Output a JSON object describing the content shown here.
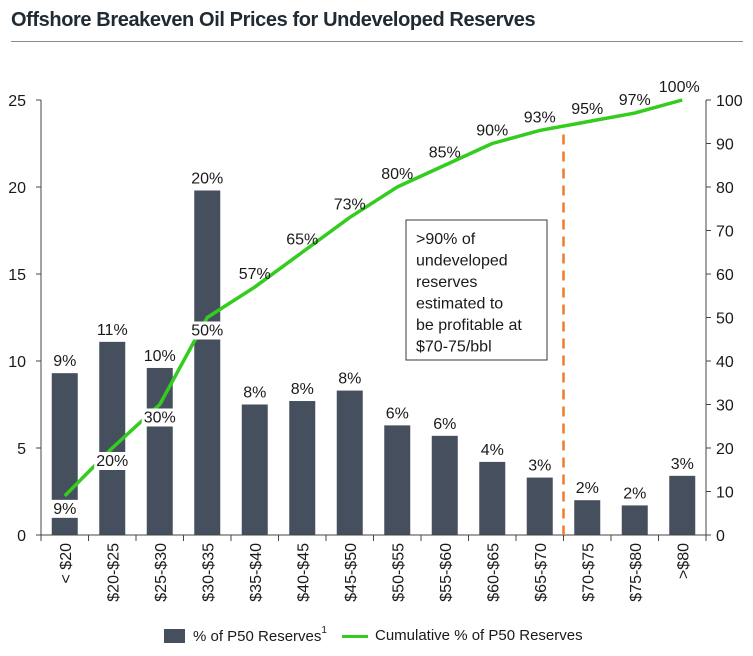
{
  "title": "Offshore Breakeven Oil Prices for Undeveloped Reserves",
  "colors": {
    "bar": "#464f5e",
    "line": "#33cc1f",
    "reference_line": "#f07c2b",
    "axis": "#444444"
  },
  "chart_data": {
    "type": "bar+line",
    "categories": [
      "< $20",
      "$20-$25",
      "$25-$30",
      "$30-$35",
      "$35-$40",
      "$40-$45",
      "$45-$50",
      "$50-$55",
      "$55-$60",
      "$60-$65",
      "$65-$70",
      "$70-$75",
      "$75-$80",
      ">$80"
    ],
    "series": [
      {
        "name": "% of P50 Reserves",
        "name_superscript": "1",
        "type": "bar",
        "axis": "left",
        "values": [
          9.3,
          11.1,
          9.6,
          19.8,
          7.5,
          7.7,
          8.3,
          6.3,
          5.7,
          4.2,
          3.3,
          2.0,
          1.7,
          3.4
        ],
        "labels": [
          "9%",
          "11%",
          "10%",
          "20%",
          "8%",
          "8%",
          "8%",
          "6%",
          "6%",
          "4%",
          "3%",
          "2%",
          "2%",
          "3%"
        ]
      },
      {
        "name": "Cumulative % of P50 Reserves",
        "type": "line",
        "axis": "right",
        "values": [
          9,
          20,
          30,
          50,
          57,
          65,
          73,
          80,
          85,
          90,
          93,
          95,
          97,
          100
        ],
        "labels": [
          "9%",
          "20%",
          "30%",
          "50%",
          "57%",
          "65%",
          "73%",
          "80%",
          "85%",
          "90%",
          "93%",
          "95%",
          "97%",
          "100%"
        ]
      }
    ],
    "y_left": {
      "ylim": [
        0,
        25
      ],
      "ticks": [
        "0",
        "5",
        "10",
        "15",
        "20",
        "25"
      ]
    },
    "y_right": {
      "ylim": [
        0,
        100
      ],
      "ticks": [
        "0",
        "10",
        "20",
        "30",
        "40",
        "50",
        "60",
        "70",
        "80",
        "90",
        "100"
      ]
    },
    "reference_line": {
      "between_categories": [
        "$65-$70",
        "$70-$75"
      ],
      "style": "dashed"
    },
    "annotation": [
      ">90% of",
      "undeveloped",
      "reserves",
      "estimated to",
      "be profitable at",
      "$70-75/bbl"
    ],
    "grid": false,
    "legend_position": "bottom"
  }
}
